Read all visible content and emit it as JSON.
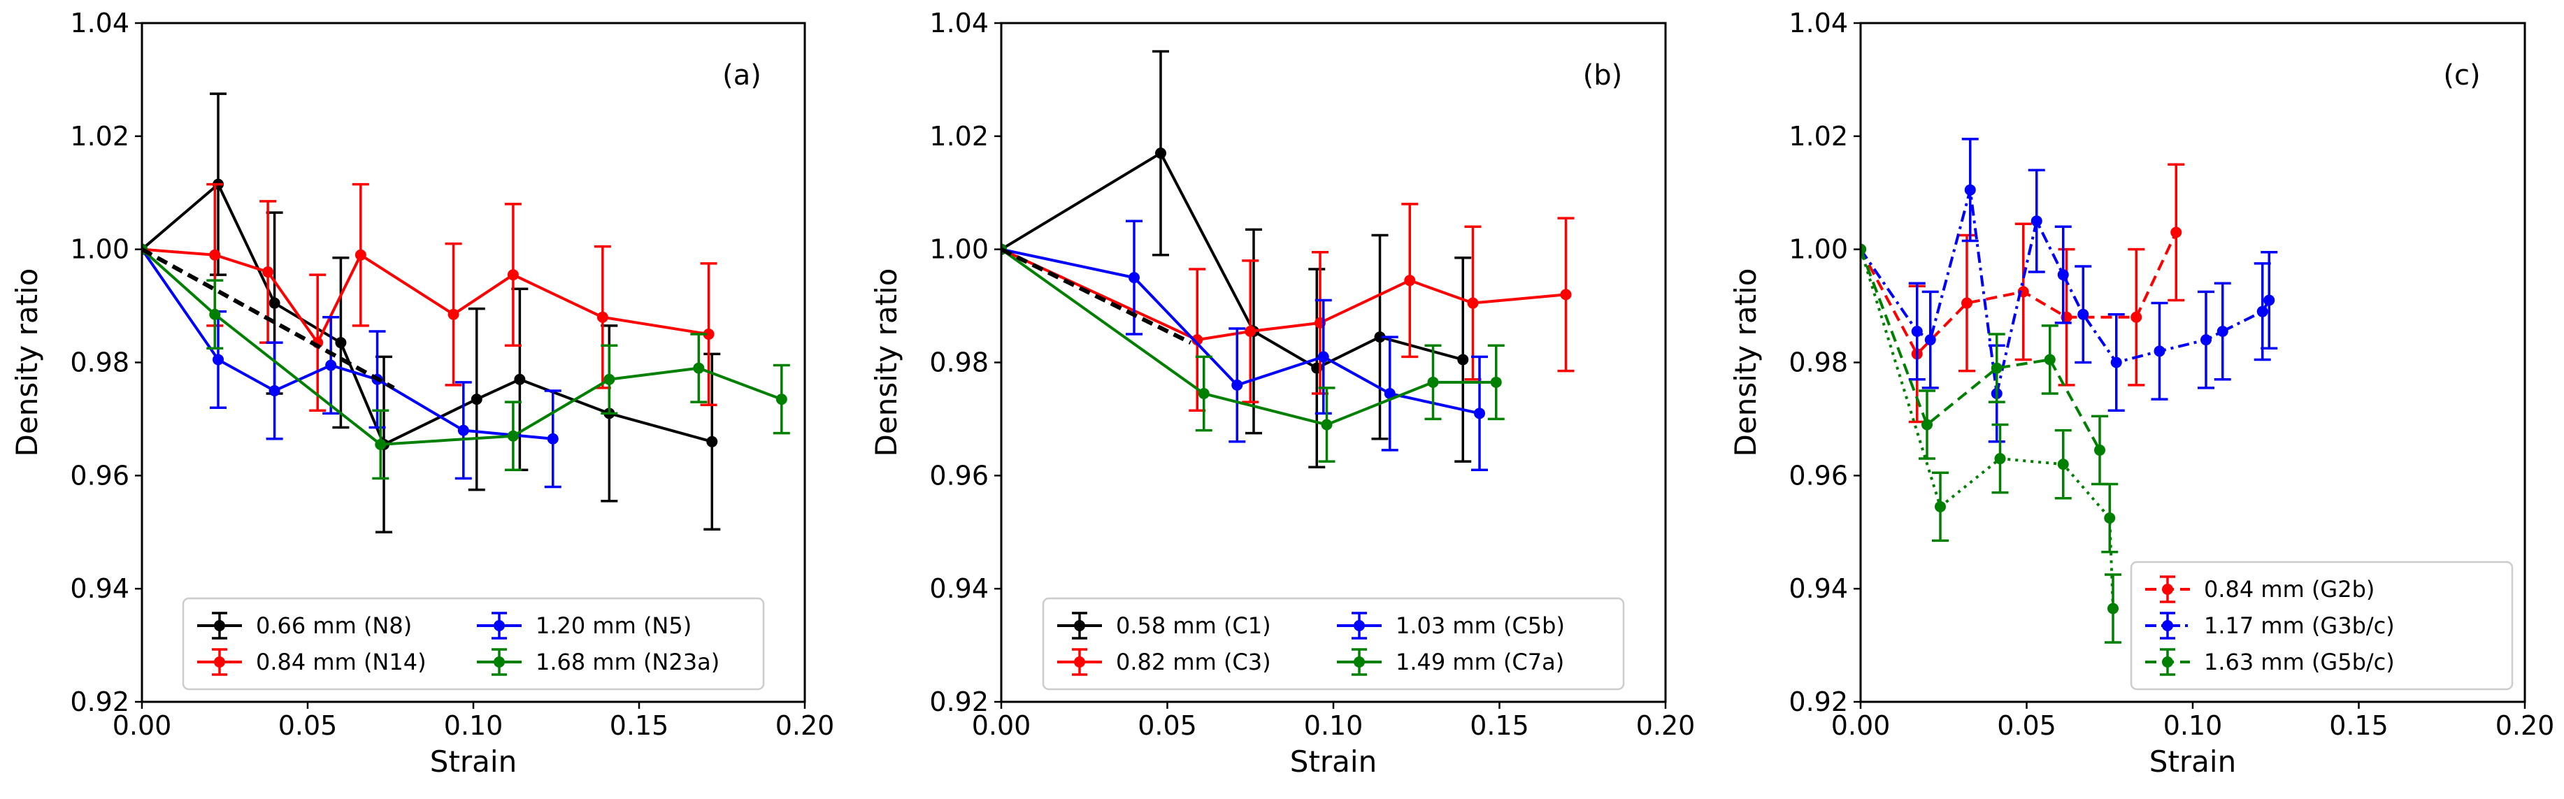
{
  "chart_data": [
    {
      "type": "line",
      "panel_label": "(a)",
      "xlabel": "Strain",
      "ylabel": "Density ratio",
      "xlim": [
        0,
        0.2
      ],
      "ylim": [
        0.92,
        1.04
      ],
      "xticks": [
        "0.00",
        "0.05",
        "0.10",
        "0.15",
        "0.20"
      ],
      "yticks": [
        "0.92",
        "0.94",
        "0.96",
        "0.98",
        "1.00",
        "1.02",
        "1.04"
      ],
      "legend_position": "lower-center",
      "legend_columns": 2,
      "series": [
        {
          "name": "0.66 mm (N8)",
          "color": "#000000",
          "dash": "solid",
          "x": [
            0,
            0.023,
            0.04,
            0.06,
            0.073,
            0.101,
            0.114,
            0.141,
            0.172
          ],
          "y": [
            1.0,
            1.0115,
            0.9905,
            0.9835,
            0.9655,
            0.9735,
            0.977,
            0.971,
            0.966
          ],
          "err": [
            0,
            0.016,
            0.016,
            0.015,
            0.0155,
            0.016,
            0.016,
            0.0155,
            0.0155
          ]
        },
        {
          "name": "0.84 mm (N14)",
          "color": "#ff0000",
          "dash": "solid",
          "x": [
            0,
            0.022,
            0.038,
            0.053,
            0.066,
            0.094,
            0.112,
            0.139,
            0.171
          ],
          "y": [
            1.0,
            0.999,
            0.996,
            0.9835,
            0.999,
            0.9885,
            0.9955,
            0.988,
            0.985
          ],
          "err": [
            0,
            0.0125,
            0.0125,
            0.012,
            0.0125,
            0.0125,
            0.0125,
            0.0125,
            0.0125
          ]
        },
        {
          "name": "1.20 mm (N5)",
          "color": "#0000ff",
          "dash": "solid",
          "x": [
            0,
            0.023,
            0.04,
            0.057,
            0.071,
            0.097,
            0.124
          ],
          "y": [
            1.0,
            0.9805,
            0.975,
            0.9795,
            0.977,
            0.968,
            0.9665
          ],
          "err": [
            0,
            0.0085,
            0.0085,
            0.0085,
            0.0085,
            0.0085,
            0.0085
          ]
        },
        {
          "name": "1.68 mm (N23a)",
          "color": "#008000",
          "dash": "solid",
          "x": [
            0,
            0.022,
            0.072,
            0.112,
            0.141,
            0.168,
            0.193
          ],
          "y": [
            1.0,
            0.9885,
            0.9655,
            0.967,
            0.977,
            0.979,
            0.9735
          ],
          "err": [
            0,
            0.006,
            0.006,
            0.006,
            0.006,
            0.006,
            0.006
          ]
        },
        {
          "name": "",
          "color": "#000000",
          "dash": "dashed",
          "thick": true,
          "markers": false,
          "x": [
            0,
            0.076
          ],
          "y": [
            1.0,
            0.9755
          ]
        }
      ]
    },
    {
      "type": "line",
      "panel_label": "(b)",
      "xlabel": "Strain",
      "ylabel": "Density ratio",
      "xlim": [
        0,
        0.2
      ],
      "ylim": [
        0.92,
        1.04
      ],
      "xticks": [
        "0.00",
        "0.05",
        "0.10",
        "0.15",
        "0.20"
      ],
      "yticks": [
        "0.92",
        "0.94",
        "0.96",
        "0.98",
        "1.00",
        "1.02",
        "1.04"
      ],
      "legend_position": "lower-center",
      "legend_columns": 2,
      "series": [
        {
          "name": "0.58 mm (C1)",
          "color": "#000000",
          "dash": "solid",
          "x": [
            0,
            0.048,
            0.076,
            0.095,
            0.114,
            0.139
          ],
          "y": [
            1.0,
            1.017,
            0.9855,
            0.979,
            0.9845,
            0.9805
          ],
          "err": [
            0,
            0.018,
            0.018,
            0.0175,
            0.018,
            0.018
          ]
        },
        {
          "name": "0.82 mm (C3)",
          "color": "#ff0000",
          "dash": "solid",
          "x": [
            0,
            0.059,
            0.075,
            0.096,
            0.123,
            0.142,
            0.17
          ],
          "y": [
            1.0,
            0.984,
            0.9855,
            0.987,
            0.9945,
            0.9905,
            0.992
          ],
          "err": [
            0,
            0.0125,
            0.0125,
            0.0125,
            0.0135,
            0.0135,
            0.0135
          ]
        },
        {
          "name": "1.03 mm (C5b)",
          "color": "#0000ff",
          "dash": "solid",
          "x": [
            0,
            0.04,
            0.071,
            0.097,
            0.117,
            0.144
          ],
          "y": [
            1.0,
            0.995,
            0.976,
            0.981,
            0.9745,
            0.971
          ],
          "err": [
            0,
            0.01,
            0.01,
            0.01,
            0.01,
            0.01
          ]
        },
        {
          "name": "1.49 mm (C7a)",
          "color": "#008000",
          "dash": "solid",
          "x": [
            0,
            0.061,
            0.098,
            0.13,
            0.149
          ],
          "y": [
            1.0,
            0.9745,
            0.969,
            0.9765,
            0.9765
          ],
          "err": [
            0,
            0.0065,
            0.0065,
            0.0065,
            0.0065
          ]
        },
        {
          "name": "",
          "color": "#000000",
          "dash": "dashed",
          "thick": true,
          "markers": false,
          "x": [
            0,
            0.057
          ],
          "y": [
            1.0,
            0.9835
          ]
        }
      ]
    },
    {
      "type": "line",
      "panel_label": "(c)",
      "xlabel": "Strain",
      "ylabel": "Density ratio",
      "xlim": [
        0,
        0.2
      ],
      "ylim": [
        0.92,
        1.04
      ],
      "xticks": [
        "0.00",
        "0.05",
        "0.10",
        "0.15",
        "0.20"
      ],
      "yticks": [
        "0.92",
        "0.94",
        "0.96",
        "0.98",
        "1.00",
        "1.02",
        "1.04"
      ],
      "legend_position": "lower-right",
      "legend_columns": 1,
      "series": [
        {
          "name": "0.84 mm (G2b)",
          "color": "#ff0000",
          "dash": "dashed",
          "x": [
            0,
            0.017,
            0.032,
            0.049,
            0.062,
            0.083,
            0.095
          ],
          "y": [
            1.0,
            0.9815,
            0.9905,
            0.9925,
            0.988,
            0.988,
            1.003
          ],
          "err": [
            0,
            0.012,
            0.012,
            0.012,
            0.012,
            0.012,
            0.012
          ]
        },
        {
          "name": "1.17 mm (G3b/c)",
          "color": "#0000ff",
          "dash": "dashdot",
          "x": [
            0,
            0.017,
            0.021,
            0.033,
            0.041,
            0.053,
            0.061,
            0.067,
            0.077,
            0.09,
            0.104,
            0.109,
            0.121,
            0.123
          ],
          "y": [
            1.0,
            0.9855,
            0.984,
            1.0105,
            0.9745,
            1.005,
            0.9955,
            0.9885,
            0.98,
            0.982,
            0.984,
            0.9855,
            0.989,
            0.991
          ],
          "err": [
            0,
            0.0085,
            0.0085,
            0.009,
            0.0085,
            0.009,
            0.0085,
            0.0085,
            0.0085,
            0.0085,
            0.0085,
            0.0085,
            0.0085,
            0.0085
          ]
        },
        {
          "name": "1.63 mm (G5b/c)",
          "color": "#008000",
          "dash": "dashed",
          "x": [
            0,
            0.02,
            0.041,
            0.057,
            0.072
          ],
          "y": [
            1.0,
            0.969,
            0.979,
            0.9805,
            0.9645
          ],
          "err": [
            0,
            0.006,
            0.006,
            0.006,
            0.006
          ]
        },
        {
          "name": "",
          "color": "#008000",
          "dash": "dotted",
          "x": [
            0,
            0.024,
            0.042,
            0.061,
            0.075,
            0.076
          ],
          "y": [
            1.0,
            0.9545,
            0.963,
            0.962,
            0.9525,
            0.9365
          ],
          "err": [
            0,
            0.006,
            0.006,
            0.006,
            0.006,
            0.006
          ]
        }
      ]
    }
  ]
}
